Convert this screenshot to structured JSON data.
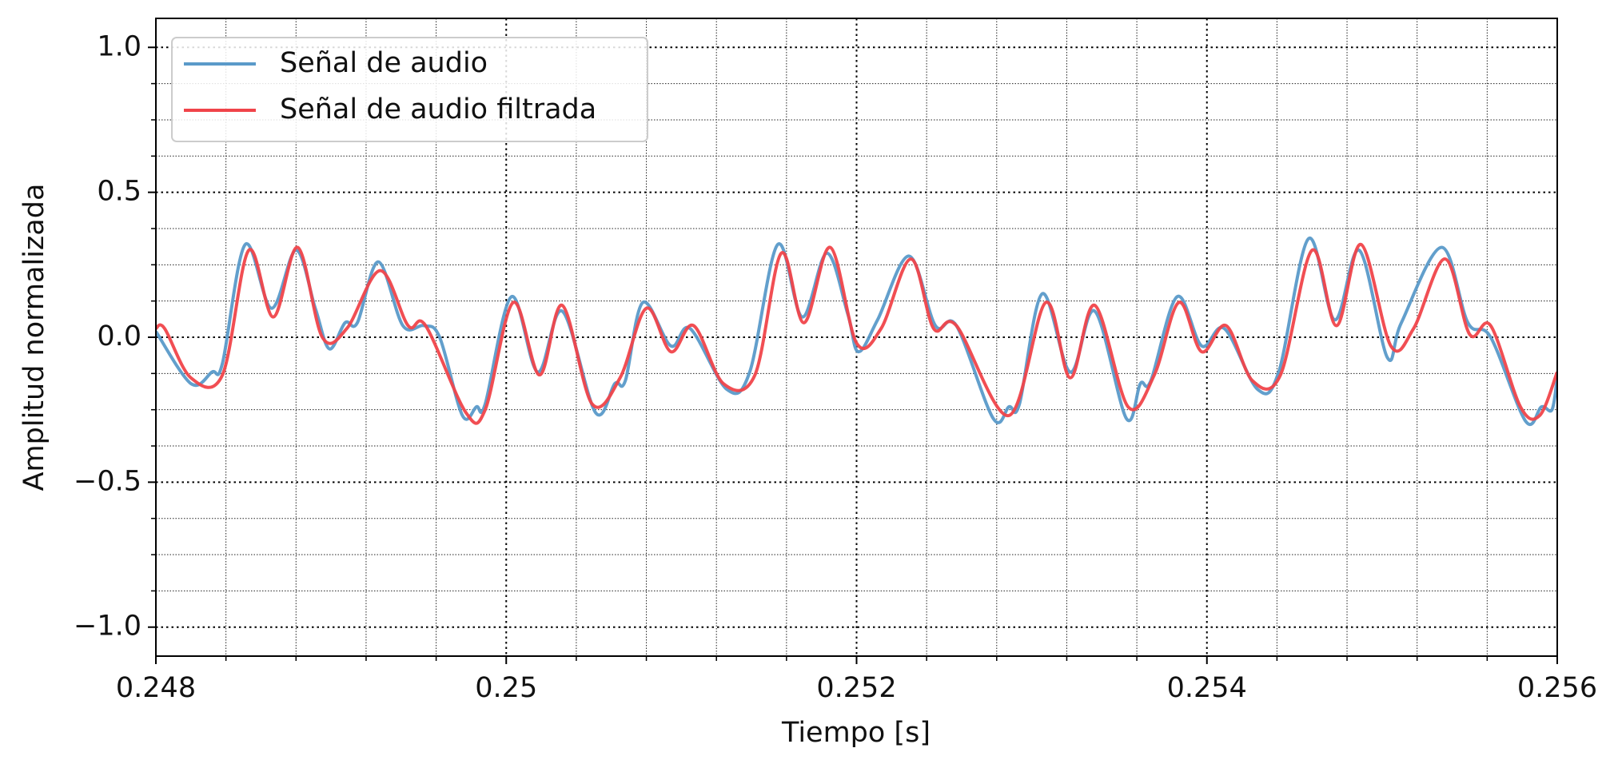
{
  "chart_data": {
    "type": "line",
    "xlabel": "Tiempo [s]",
    "ylabel": "Amplitud normalizada",
    "xlim": [
      0.248,
      0.256
    ],
    "ylim": [
      -1.1,
      1.1
    ],
    "xticks": [
      0.248,
      0.25,
      0.252,
      0.254,
      0.256
    ],
    "yticks": [
      {
        "value": -1,
        "label": "−1.0"
      },
      {
        "value": -0.5,
        "label": "−0.5"
      },
      {
        "value": 0,
        "label": "0.0"
      },
      {
        "value": 0.5,
        "label": "0.5"
      },
      {
        "value": 1,
        "label": "1.0"
      }
    ],
    "xminor": [
      0.2484,
      0.2488,
      0.2492,
      0.2496,
      0.2504,
      0.2508,
      0.2512,
      0.2516,
      0.2524,
      0.2528,
      0.2532,
      0.2536,
      0.2544,
      0.2548,
      0.2552,
      0.2556
    ],
    "yminor": [
      -0.875,
      -0.75,
      -0.625,
      -0.375,
      -0.25,
      -0.125,
      0.125,
      0.25,
      0.375,
      0.625,
      0.75,
      0.875
    ],
    "grid": true,
    "legend": "upper left",
    "series": [
      {
        "name": "Señal de audio",
        "color": "#5a9ac9",
        "x": [
          0.248,
          0.2482,
          0.24832,
          0.24838,
          0.24851,
          0.24866,
          0.2488,
          0.24891,
          0.24899,
          0.24908,
          0.24915,
          0.24927,
          0.24941,
          0.24953,
          0.24962,
          0.24975,
          0.24983,
          0.24988,
          0.25003,
          0.25018,
          0.25032,
          0.25051,
          0.25062,
          0.25068,
          0.25078,
          0.25094,
          0.25105,
          0.25126,
          0.25139,
          0.25155,
          0.25169,
          0.25183,
          0.25195,
          0.25201,
          0.25212,
          0.2523,
          0.25245,
          0.25257,
          0.25278,
          0.25287,
          0.25293,
          0.25306,
          0.25322,
          0.25336,
          0.25354,
          0.25362,
          0.25368,
          0.25383,
          0.25397,
          0.2541,
          0.25429,
          0.25441,
          0.25458,
          0.25473,
          0.25487,
          0.25503,
          0.25511,
          0.25534,
          0.25549,
          0.25562,
          0.25582,
          0.25591,
          0.25597,
          0.256
        ],
        "values": [
          0.02,
          -0.16,
          -0.12,
          -0.09,
          0.32,
          0.1,
          0.3,
          0.1,
          -0.04,
          0.05,
          0.05,
          0.26,
          0.04,
          0.04,
          0.0,
          -0.27,
          -0.24,
          -0.23,
          0.14,
          -0.12,
          0.09,
          -0.26,
          -0.16,
          -0.15,
          0.12,
          -0.03,
          0.03,
          -0.18,
          -0.12,
          0.32,
          0.07,
          0.29,
          0.08,
          -0.05,
          0.06,
          0.28,
          0.04,
          0.04,
          -0.28,
          -0.24,
          -0.23,
          0.15,
          -0.12,
          0.09,
          -0.28,
          -0.16,
          -0.15,
          0.14,
          -0.03,
          0.03,
          -0.18,
          -0.12,
          0.34,
          0.06,
          0.3,
          -0.07,
          0.05,
          0.31,
          0.05,
          0.0,
          -0.29,
          -0.24,
          -0.25,
          -0.14
        ]
      },
      {
        "name": "Señal de audio filtrada",
        "color": "#f0444a",
        "x": [
          0.248,
          0.24805,
          0.2482,
          0.24838,
          0.24853,
          0.24867,
          0.24881,
          0.24895,
          0.24909,
          0.24928,
          0.24944,
          0.24954,
          0.24977,
          0.24988,
          0.25004,
          0.25019,
          0.25032,
          0.25049,
          0.25065,
          0.2508,
          0.25094,
          0.25107,
          0.25124,
          0.25142,
          0.25157,
          0.2517,
          0.25185,
          0.252,
          0.25214,
          0.25231,
          0.25244,
          0.25257,
          0.25287,
          0.25308,
          0.25322,
          0.25336,
          0.25355,
          0.2537,
          0.25384,
          0.25397,
          0.25411,
          0.25426,
          0.25442,
          0.2546,
          0.25474,
          0.25488,
          0.25505,
          0.25518,
          0.25536,
          0.2555,
          0.25562,
          0.25579,
          0.2559,
          0.256
        ],
        "values": [
          0.03,
          0.03,
          -0.14,
          -0.13,
          0.3,
          0.07,
          0.31,
          0.0,
          0.03,
          0.23,
          0.04,
          0.04,
          -0.26,
          -0.25,
          0.12,
          -0.13,
          0.11,
          -0.23,
          -0.14,
          0.1,
          -0.05,
          0.04,
          -0.16,
          -0.13,
          0.29,
          0.05,
          0.31,
          -0.02,
          0.03,
          0.27,
          0.03,
          0.04,
          -0.27,
          0.12,
          -0.14,
          0.11,
          -0.24,
          -0.13,
          0.12,
          -0.05,
          0.04,
          -0.15,
          -0.13,
          0.3,
          0.04,
          0.32,
          -0.03,
          0.03,
          0.27,
          0.01,
          0.04,
          -0.24,
          -0.27,
          -0.12
        ]
      }
    ]
  }
}
